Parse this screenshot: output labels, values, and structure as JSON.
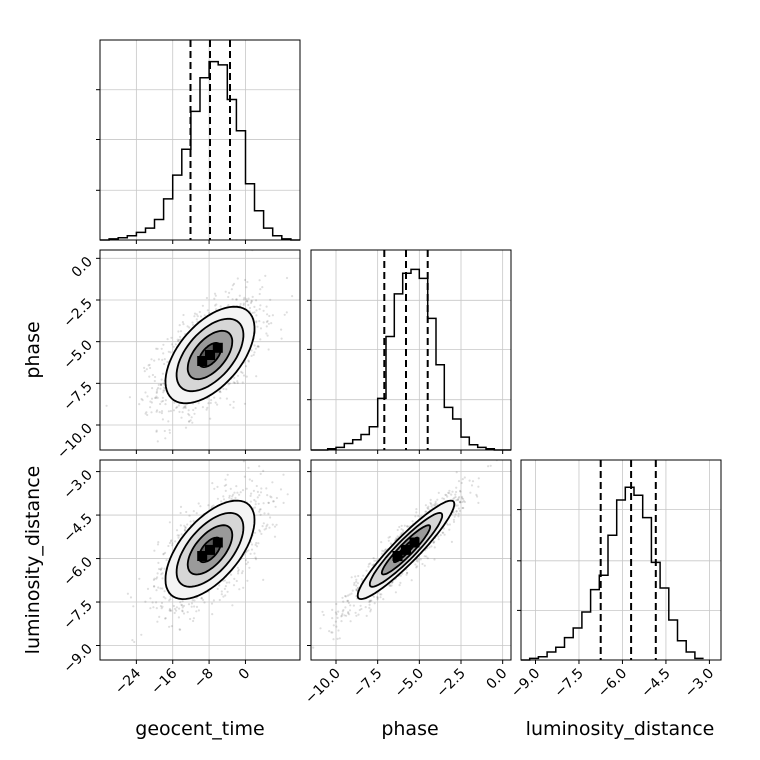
{
  "chart_data": {
    "type": "corner",
    "grid": true,
    "parameters": [
      {
        "name": "geocent_time",
        "label": "geocent_time",
        "range": [
          -32,
          12
        ],
        "ticks": [
          -24,
          -16,
          -8,
          0
        ],
        "tick_labels": [
          "−24",
          "−16",
          "−8",
          "0"
        ],
        "quantiles": [
          -12.1,
          -7.8,
          -3.4
        ],
        "median": -7.8,
        "sd": 4.9
      },
      {
        "name": "phase",
        "label": "phase",
        "range": [
          -11.5,
          0.5
        ],
        "ticks": [
          -10.0,
          -7.5,
          -5.0,
          -2.5,
          0.0
        ],
        "tick_labels": [
          "−10.0",
          "−7.5",
          "−5.0",
          "−2.5",
          "0.0"
        ],
        "quantiles": [
          -7.1,
          -5.8,
          -4.5
        ],
        "median": -5.8,
        "sd": 1.45
      },
      {
        "name": "luminosity_distance",
        "label": "luminosity_distance",
        "range": [
          -9.5,
          -2.6
        ],
        "ticks": [
          -9.0,
          -7.5,
          -6.0,
          -4.5,
          -3.0
        ],
        "tick_labels": [
          "−9.0",
          "−7.5",
          "−6.0",
          "−4.5",
          "−3.0"
        ],
        "quantiles": [
          -6.75,
          -5.7,
          -4.85
        ],
        "median": -5.7,
        "sd": 0.85
      }
    ],
    "histograms": [
      {
        "parameter": "geocent_time",
        "bin_edges": [
          -32,
          -30,
          -28,
          -26,
          -24,
          -22,
          -20,
          -18,
          -16,
          -14,
          -12,
          -10,
          -8,
          -6,
          -4,
          -2,
          0,
          2,
          4,
          6,
          8,
          10,
          12
        ],
        "counts": [
          0,
          1,
          2,
          4,
          7,
          11,
          19,
          38,
          60,
          84,
          119,
          150,
          165,
          162,
          130,
          101,
          52,
          27,
          11,
          4,
          1,
          0
        ],
        "ylim": [
          0,
          185
        ],
        "yticks": [
          46,
          93,
          139
        ]
      },
      {
        "parameter": "phase",
        "bin_edges": [
          -11.5,
          -11.0,
          -10.5,
          -10.0,
          -9.5,
          -9.0,
          -8.5,
          -8.0,
          -7.5,
          -7.0,
          -6.5,
          -6.0,
          -5.5,
          -5.0,
          -4.5,
          -4.0,
          -3.5,
          -3.0,
          -2.5,
          -2.0,
          -1.5,
          -1.0,
          -0.5,
          0.0,
          0.5
        ],
        "counts": [
          0,
          0,
          1,
          2,
          5,
          8,
          12,
          18,
          40,
          88,
          121,
          137,
          140,
          133,
          102,
          66,
          33,
          24,
          10,
          4,
          2,
          1,
          0,
          0
        ],
        "ylim": [
          0,
          155
        ],
        "yticks": [
          39,
          78,
          116
        ]
      },
      {
        "parameter": "luminosity_distance",
        "bin_edges": [
          -9.5,
          -9.2,
          -8.9,
          -8.6,
          -8.3,
          -8.0,
          -7.7,
          -7.4,
          -7.1,
          -6.8,
          -6.5,
          -6.2,
          -5.9,
          -5.6,
          -5.3,
          -5.0,
          -4.7,
          -4.4,
          -4.1,
          -3.8,
          -3.5,
          -3.2
        ],
        "counts": [
          0,
          1,
          2,
          5,
          8,
          14,
          20,
          30,
          44,
          53,
          78,
          100,
          108,
          103,
          89,
          61,
          45,
          25,
          12,
          5,
          1
        ],
        "ylim": [
          0,
          125
        ],
        "yticks": [
          31,
          62,
          94
        ]
      }
    ],
    "pairs": [
      {
        "x": "geocent_time",
        "y": "phase",
        "correlation": 0.55
      },
      {
        "x": "geocent_time",
        "y": "luminosity_distance",
        "correlation": 0.6
      },
      {
        "x": "phase",
        "y": "luminosity_distance",
        "correlation": 0.93
      }
    ],
    "contour_levels_sigma": [
      0.5,
      1,
      1.5,
      2
    ]
  }
}
